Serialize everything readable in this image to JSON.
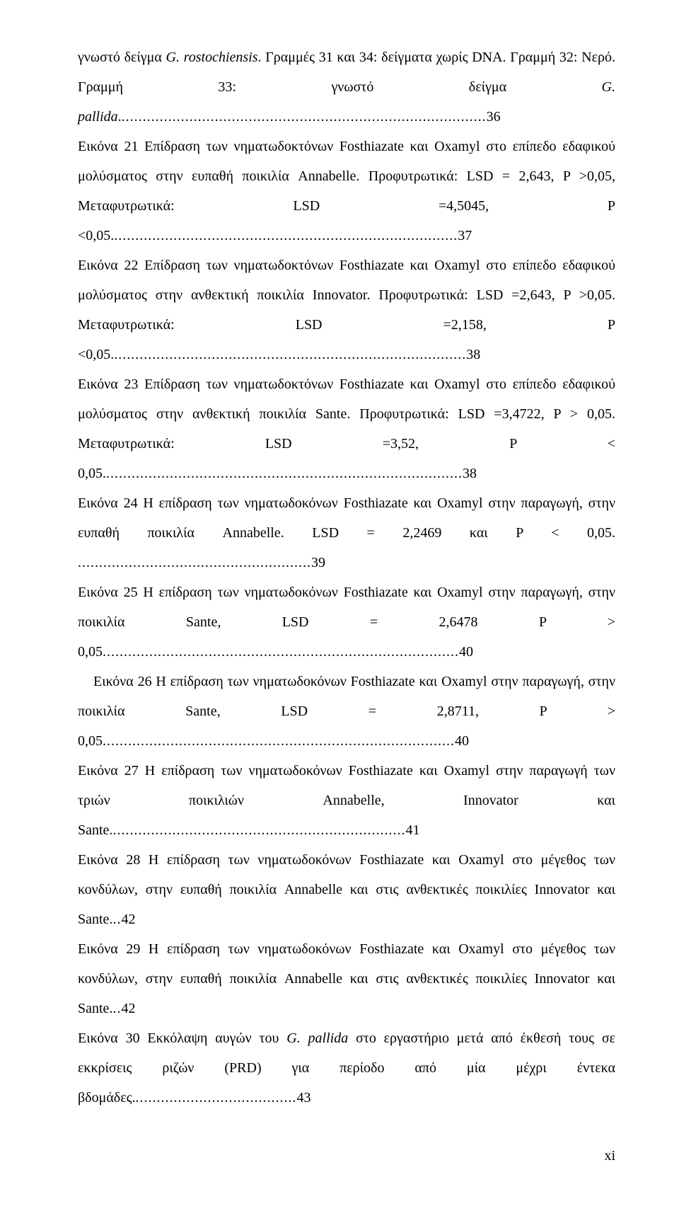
{
  "entries": [
    {
      "text_parts": [
        "γνωστό δείγμα ",
        {
          "italic": true,
          "text": "G. rostochiensis"
        },
        ". Γραμμές 31 και 34: δείγματα χωρίς DNA. Γραμμή 32: Νερό. Γραμμή 33: γνωστό δείγμα ",
        {
          "italic": true,
          "text": "G. pallida"
        },
        "."
      ],
      "page": "36",
      "indent": false
    },
    {
      "text_parts": [
        "Εικόνα 21 Επίδραση των νηματωδοκτόνων Fosthiazate και Oxamyl στο επίπεδο εδαφικού μολύσματος στην ευπαθή ποικιλία Annabelle. Προφυτρωτικά: LSD = 2,643, P >0,05, Μεταφυτρωτικά: LSD =4,5045, P <0,05."
      ],
      "page": "37",
      "indent": false
    },
    {
      "text_parts": [
        "Εικόνα 22 Επίδραση των νηματωδοκτόνων Fosthiazate και Oxamyl στο επίπεδο εδαφικού μολύσματος στην ανθεκτική ποικιλία Innovator. Προφυτρωτικά: LSD =2,643, P >0,05. Μεταφυτρωτικά: LSD =2,158, P <0,05."
      ],
      "page": "38",
      "indent": false
    },
    {
      "text_parts": [
        "Εικόνα 23 Επίδραση των νηματωδοκτόνων Fosthiazate και Oxamyl στο επίπεδο εδαφικού μολύσματος στην ανθεκτική ποικιλία Sante. Προφυτρωτικά: LSD =3,4722, P > 0,05. Μεταφυτρωτικά: LSD =3,52, P < 0,05."
      ],
      "page": "38",
      "indent": false
    },
    {
      "text_parts": [
        "Εικόνα 24 Η επίδραση των νηματωδοκόνων Fosthiazate και Oxamyl στην παραγωγή, στην ευπαθή ποικιλία Annabelle. LSD = 2,2469 και  P < 0,05. "
      ],
      "page": "39",
      "indent": false
    },
    {
      "text_parts": [
        "Εικόνα 25 Η επίδραση των νηματωδοκόνων Fosthiazate και Oxamyl στην παραγωγή, στην ποικιλία Sante, LSD = 2,6478  P > 0,05"
      ],
      "page": "40",
      "indent": false
    },
    {
      "text_parts": [
        "Εικόνα 26 Η επίδραση των νηματωδοκόνων Fosthiazate και Oxamyl στην παραγωγή, στην ποικιλία Sante, LSD = 2,8711,  P > 0,05"
      ],
      "page": "40",
      "indent": true
    },
    {
      "text_parts": [
        "Εικόνα 27 Η επίδραση των νηματωδοκόνων Fosthiazate και Oxamyl στην παραγωγή των τριών ποικιλιών Annabelle, Innovator και Sante."
      ],
      "page": "41",
      "indent": false
    },
    {
      "text_parts": [
        "Εικόνα 28 Η επίδραση των νηματωδοκόνων Fosthiazate και Oxamyl στο μέγεθος των κονδύλων, στην ευπαθή ποικιλία Annabelle και στις ανθεκτικές ποικιλίες Innovator και Sante."
      ],
      "page": "42",
      "indent": false
    },
    {
      "text_parts": [
        "Εικόνα 29 Η επίδραση των νηματωδοκόνων Fosthiazate και Oxamyl στο μέγεθος των κονδύλων, στην ευπαθή ποικιλία Annabelle και στις ανθεκτικές ποικιλίες Innovator και Sante."
      ],
      "page": "42",
      "indent": false
    },
    {
      "text_parts": [
        "Εικόνα 30 Εκκόλαψη αυγών του ",
        {
          "italic": true,
          "text": "G. pallida"
        },
        " στο εργαστήριο μετά από έκθεσή τους σε εκκρίσεις ριζών (PRD) για περίοδο από μία μέχρι έντεκα βδομάδες."
      ],
      "page": "43",
      "indent": false
    }
  ],
  "page_number": "xi"
}
